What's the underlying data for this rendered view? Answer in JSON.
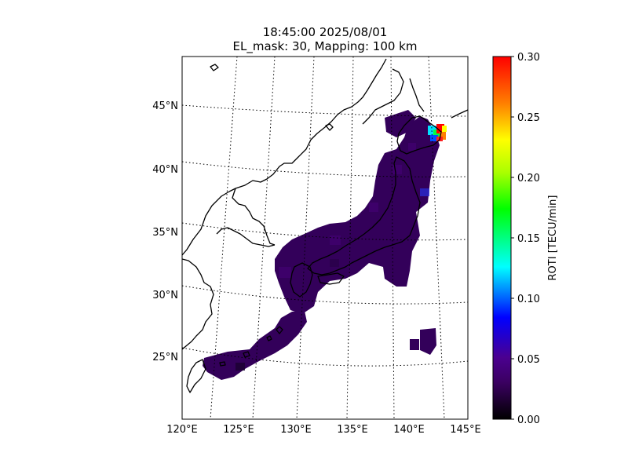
{
  "title": {
    "line1": "18:45:00 2025/08/01",
    "line2": "EL_mask: 30, Mapping: 100 km"
  },
  "map": {
    "projection": "conic",
    "lon_range": [
      120,
      145
    ],
    "lat_range": [
      20,
      49
    ],
    "lat_ticks": [
      "25°N",
      "30°N",
      "35°N",
      "40°N",
      "45°N"
    ],
    "lon_ticks": [
      "120°E",
      "125°E",
      "130°E",
      "135°E",
      "140°E",
      "145°E"
    ],
    "gridlines": "dotted",
    "coastlines": true,
    "roti_background_level": 0.03,
    "roti_hotspot": {
      "lon": 142.5,
      "lat": 43.5,
      "max_value": 0.3
    }
  },
  "colorbar": {
    "label": "ROTI [TECU/min]",
    "ticks": [
      "0.00",
      "0.05",
      "0.10",
      "0.15",
      "0.20",
      "0.25",
      "0.30"
    ],
    "range": [
      0,
      0.3
    ],
    "colors": [
      "#000000",
      "#3a0060",
      "#0000ff",
      "#00ffff",
      "#00ff00",
      "#ffff00",
      "#ff0000"
    ]
  }
}
